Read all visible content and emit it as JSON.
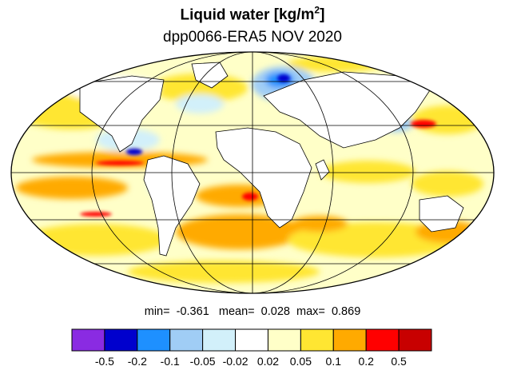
{
  "title": {
    "variable": "Liquid water",
    "units_prefix": "[kg/m",
    "units_exp": "2",
    "units_suffix": "]",
    "subtitle": "dpp0066-ERA5 NOV 2020"
  },
  "stats": {
    "min_label": "min=",
    "min": "-0.361",
    "mean_label": "mean=",
    "mean": "0.028",
    "max_label": "max=",
    "max": "0.869"
  },
  "colorbar": {
    "colors": [
      "#8a2be2",
      "#0000cd",
      "#1e90ff",
      "#a0cdf5",
      "#d2f0fa",
      "#ffffff",
      "#ffffc8",
      "#ffe632",
      "#ffaa00",
      "#ff0000",
      "#c80000"
    ],
    "ticks": [
      "-0.5",
      "-0.2",
      "-0.1",
      "-0.05",
      "-0.02",
      "0.02",
      "0.05",
      "0.1",
      "0.2",
      "0.5"
    ]
  }
}
